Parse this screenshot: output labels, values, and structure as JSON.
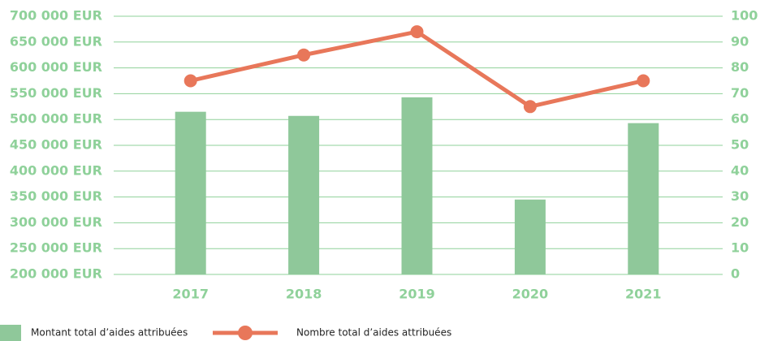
{
  "chart_data": {
    "type": "bar-line",
    "categories": [
      "2017",
      "2018",
      "2019",
      "2020",
      "2021"
    ],
    "series": [
      {
        "name": "Montant total d’aides attribuées",
        "color": "#8fc89a",
        "type": "bar",
        "values": [
          515000,
          507000,
          543000,
          345000,
          493000
        ]
      },
      {
        "name": "Nombre total d’aides attribuées",
        "color": "#e8775a",
        "type": "line",
        "axis": "y2",
        "values": [
          75,
          85,
          94,
          65,
          75
        ]
      }
    ],
    "ylim": [
      200000,
      700000
    ],
    "yticks": [
      {
        "value": 200000,
        "label": "200 000 EUR"
      },
      {
        "value": 250000,
        "label": "250 000 EUR"
      },
      {
        "value": 300000,
        "label": "300 000 EUR"
      },
      {
        "value": 350000,
        "label": "350 000 EUR"
      },
      {
        "value": 400000,
        "label": "400 000 EUR"
      },
      {
        "value": 450000,
        "label": "450 000 EUR"
      },
      {
        "value": 500000,
        "label": "500 000 EUR"
      },
      {
        "value": 550000,
        "label": "550 000 EUR"
      },
      {
        "value": 600000,
        "label": "600 000 EUR"
      },
      {
        "value": 650000,
        "label": "650 000 EUR"
      },
      {
        "value": 700000,
        "label": "700 000 EUR"
      }
    ],
    "y2lim": [
      0,
      100
    ],
    "y2ticks": [
      0,
      10,
      20,
      30,
      40,
      50,
      60,
      70,
      80,
      90,
      100
    ],
    "grid": true,
    "legend": "bottom"
  }
}
